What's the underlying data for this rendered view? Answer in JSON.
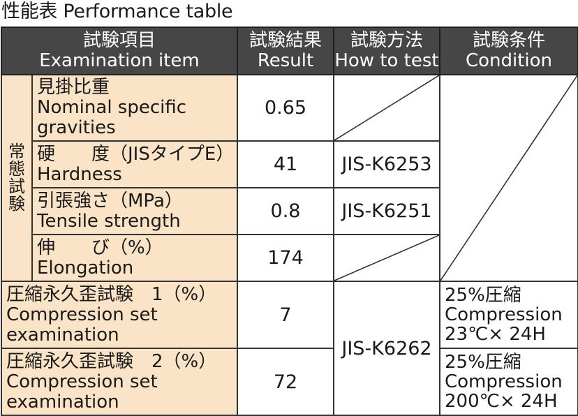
{
  "title": "性能表 Performance table",
  "header": {
    "item_ja": "試験項目",
    "item_en": "Examination item",
    "result_ja": "試験結果",
    "result_en": "Result",
    "method_ja": "試験方法",
    "method_en": "How to test",
    "condition_ja": "試験条件",
    "condition_en": "Condition"
  },
  "group_label": "常態試験",
  "rows": [
    {
      "name_ja": "見掛比重",
      "name_en_1": "Nominal specific",
      "name_en_2": "gravities",
      "result": "0.65",
      "method": ""
    },
    {
      "name_ja": "硬　　度（JISタイプE）",
      "name_en_1": "Hardness",
      "result": "41",
      "method": "JIS-K6253"
    },
    {
      "name_ja": "引張強さ（MPa）",
      "name_en_1": "Tensile strength",
      "result": "0.8",
      "method": "JIS-K6251"
    },
    {
      "name_ja": "伸　　び（%）",
      "name_en_1": "Elongation",
      "result": "174",
      "method": ""
    },
    {
      "name_ja": "圧縮永久歪試験　1（%）",
      "name_en_1": "Compression set",
      "name_en_2": "examination",
      "result": "7",
      "cond_1": "25%圧縮",
      "cond_2": "Compression",
      "cond_3": "23℃× 24H"
    },
    {
      "name_ja": "圧縮永久歪試験　2（%）",
      "name_en_1": "Compression set",
      "name_en_2": "examination",
      "result": "72",
      "cond_1": "25%圧縮",
      "cond_2": "Compression",
      "cond_3": "200℃× 24H"
    }
  ],
  "compression_method": "JIS-K6262"
}
